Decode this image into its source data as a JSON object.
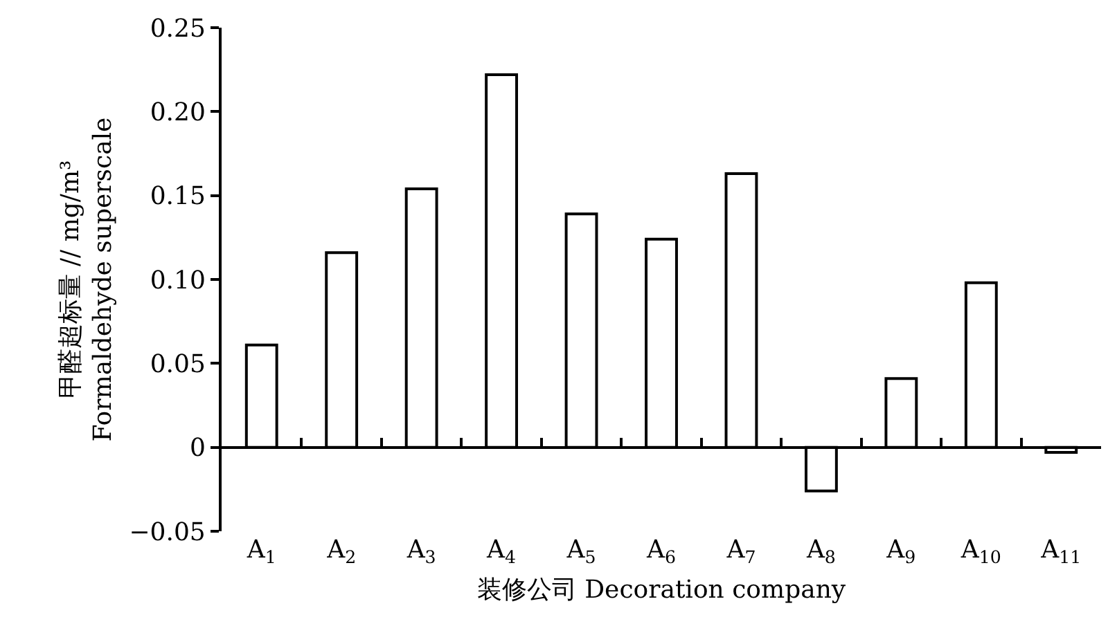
{
  "chart_data": {
    "type": "bar",
    "xlabel": "装修公司 Decoration company",
    "ylabel": "甲醛超标量 // mg/m³\nFormaldehyde superscale",
    "categories": [
      "A$_{1}$",
      "A$_{2}$",
      "A$_{3}$",
      "A$_{4}$",
      "A$_{5}$",
      "A$_{6}$",
      "A$_{7}$",
      "A$_{8}$",
      "A$_{9}$",
      "A$_{10}$",
      "A$_{11}$"
    ],
    "values": [
      0.061,
      0.116,
      0.154,
      0.222,
      0.139,
      0.124,
      0.163,
      -0.026,
      0.041,
      0.098,
      -0.003
    ],
    "color": "#ffffff",
    "ylim": [
      -0.05,
      0.25
    ],
    "yticks": [
      {
        "value": -0.05,
        "label": "−0.05"
      },
      {
        "value": 0,
        "label": "0"
      },
      {
        "value": 0.05,
        "label": "0.05"
      },
      {
        "value": 0.1,
        "label": "0.10"
      },
      {
        "value": 0.15,
        "label": "0.15"
      },
      {
        "value": 0.2,
        "label": "0.20"
      },
      {
        "value": 0.25,
        "label": "0.25"
      }
    ],
    "legend": false
  }
}
